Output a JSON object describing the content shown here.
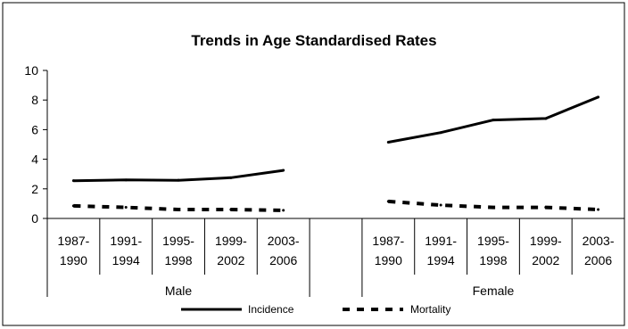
{
  "chart_data": {
    "type": "line",
    "title": "Trends in Age Standardised Rates",
    "xlabel": "",
    "ylabel": "",
    "ylim": [
      0,
      10
    ],
    "yticks": [
      "0",
      "2",
      "4",
      "6",
      "8",
      "10"
    ],
    "groups": [
      {
        "name": "Male",
        "categories": [
          {
            "line1": "1987-",
            "line2": "1990"
          },
          {
            "line1": "1991-",
            "line2": "1994"
          },
          {
            "line1": "1995-",
            "line2": "1998"
          },
          {
            "line1": "1999-",
            "line2": "2002"
          },
          {
            "line1": "2003-",
            "line2": "2006"
          }
        ]
      },
      {
        "name": "",
        "categories": [
          {
            "line1": "",
            "line2": ""
          }
        ]
      },
      {
        "name": "Female",
        "categories": [
          {
            "line1": "1987-",
            "line2": "1990"
          },
          {
            "line1": "1991-",
            "line2": "1994"
          },
          {
            "line1": "1995-",
            "line2": "1998"
          },
          {
            "line1": "1999-",
            "line2": "2002"
          },
          {
            "line1": "2003-",
            "line2": "2006"
          }
        ]
      }
    ],
    "series": [
      {
        "name": "Incidence",
        "style": "solid",
        "color": "#000000",
        "values": [
          2.55,
          2.6,
          2.58,
          2.75,
          3.25,
          null,
          5.15,
          5.8,
          6.65,
          6.75,
          8.2
        ]
      },
      {
        "name": "Mortality",
        "style": "dashed",
        "color": "#000000",
        "values": [
          0.85,
          0.75,
          0.6,
          0.6,
          0.55,
          null,
          1.15,
          0.9,
          0.75,
          0.75,
          0.6
        ]
      }
    ],
    "grid": false,
    "legend": "bottom"
  }
}
